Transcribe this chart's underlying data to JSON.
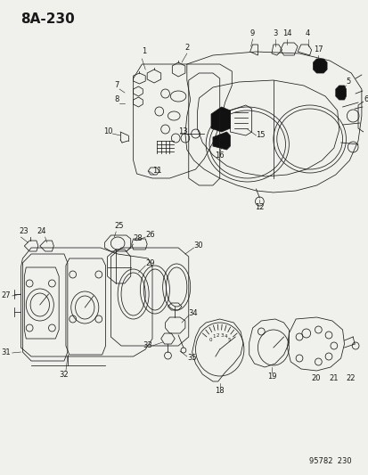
{
  "title": "8A-230",
  "footer": "95782  230",
  "bg_color": "#f0f0ec",
  "line_color": "#1a1a1a",
  "title_fontsize": 11,
  "footer_fontsize": 6,
  "label_fontsize": 6,
  "fig_w": 4.14,
  "fig_h": 5.33,
  "dpi": 100
}
